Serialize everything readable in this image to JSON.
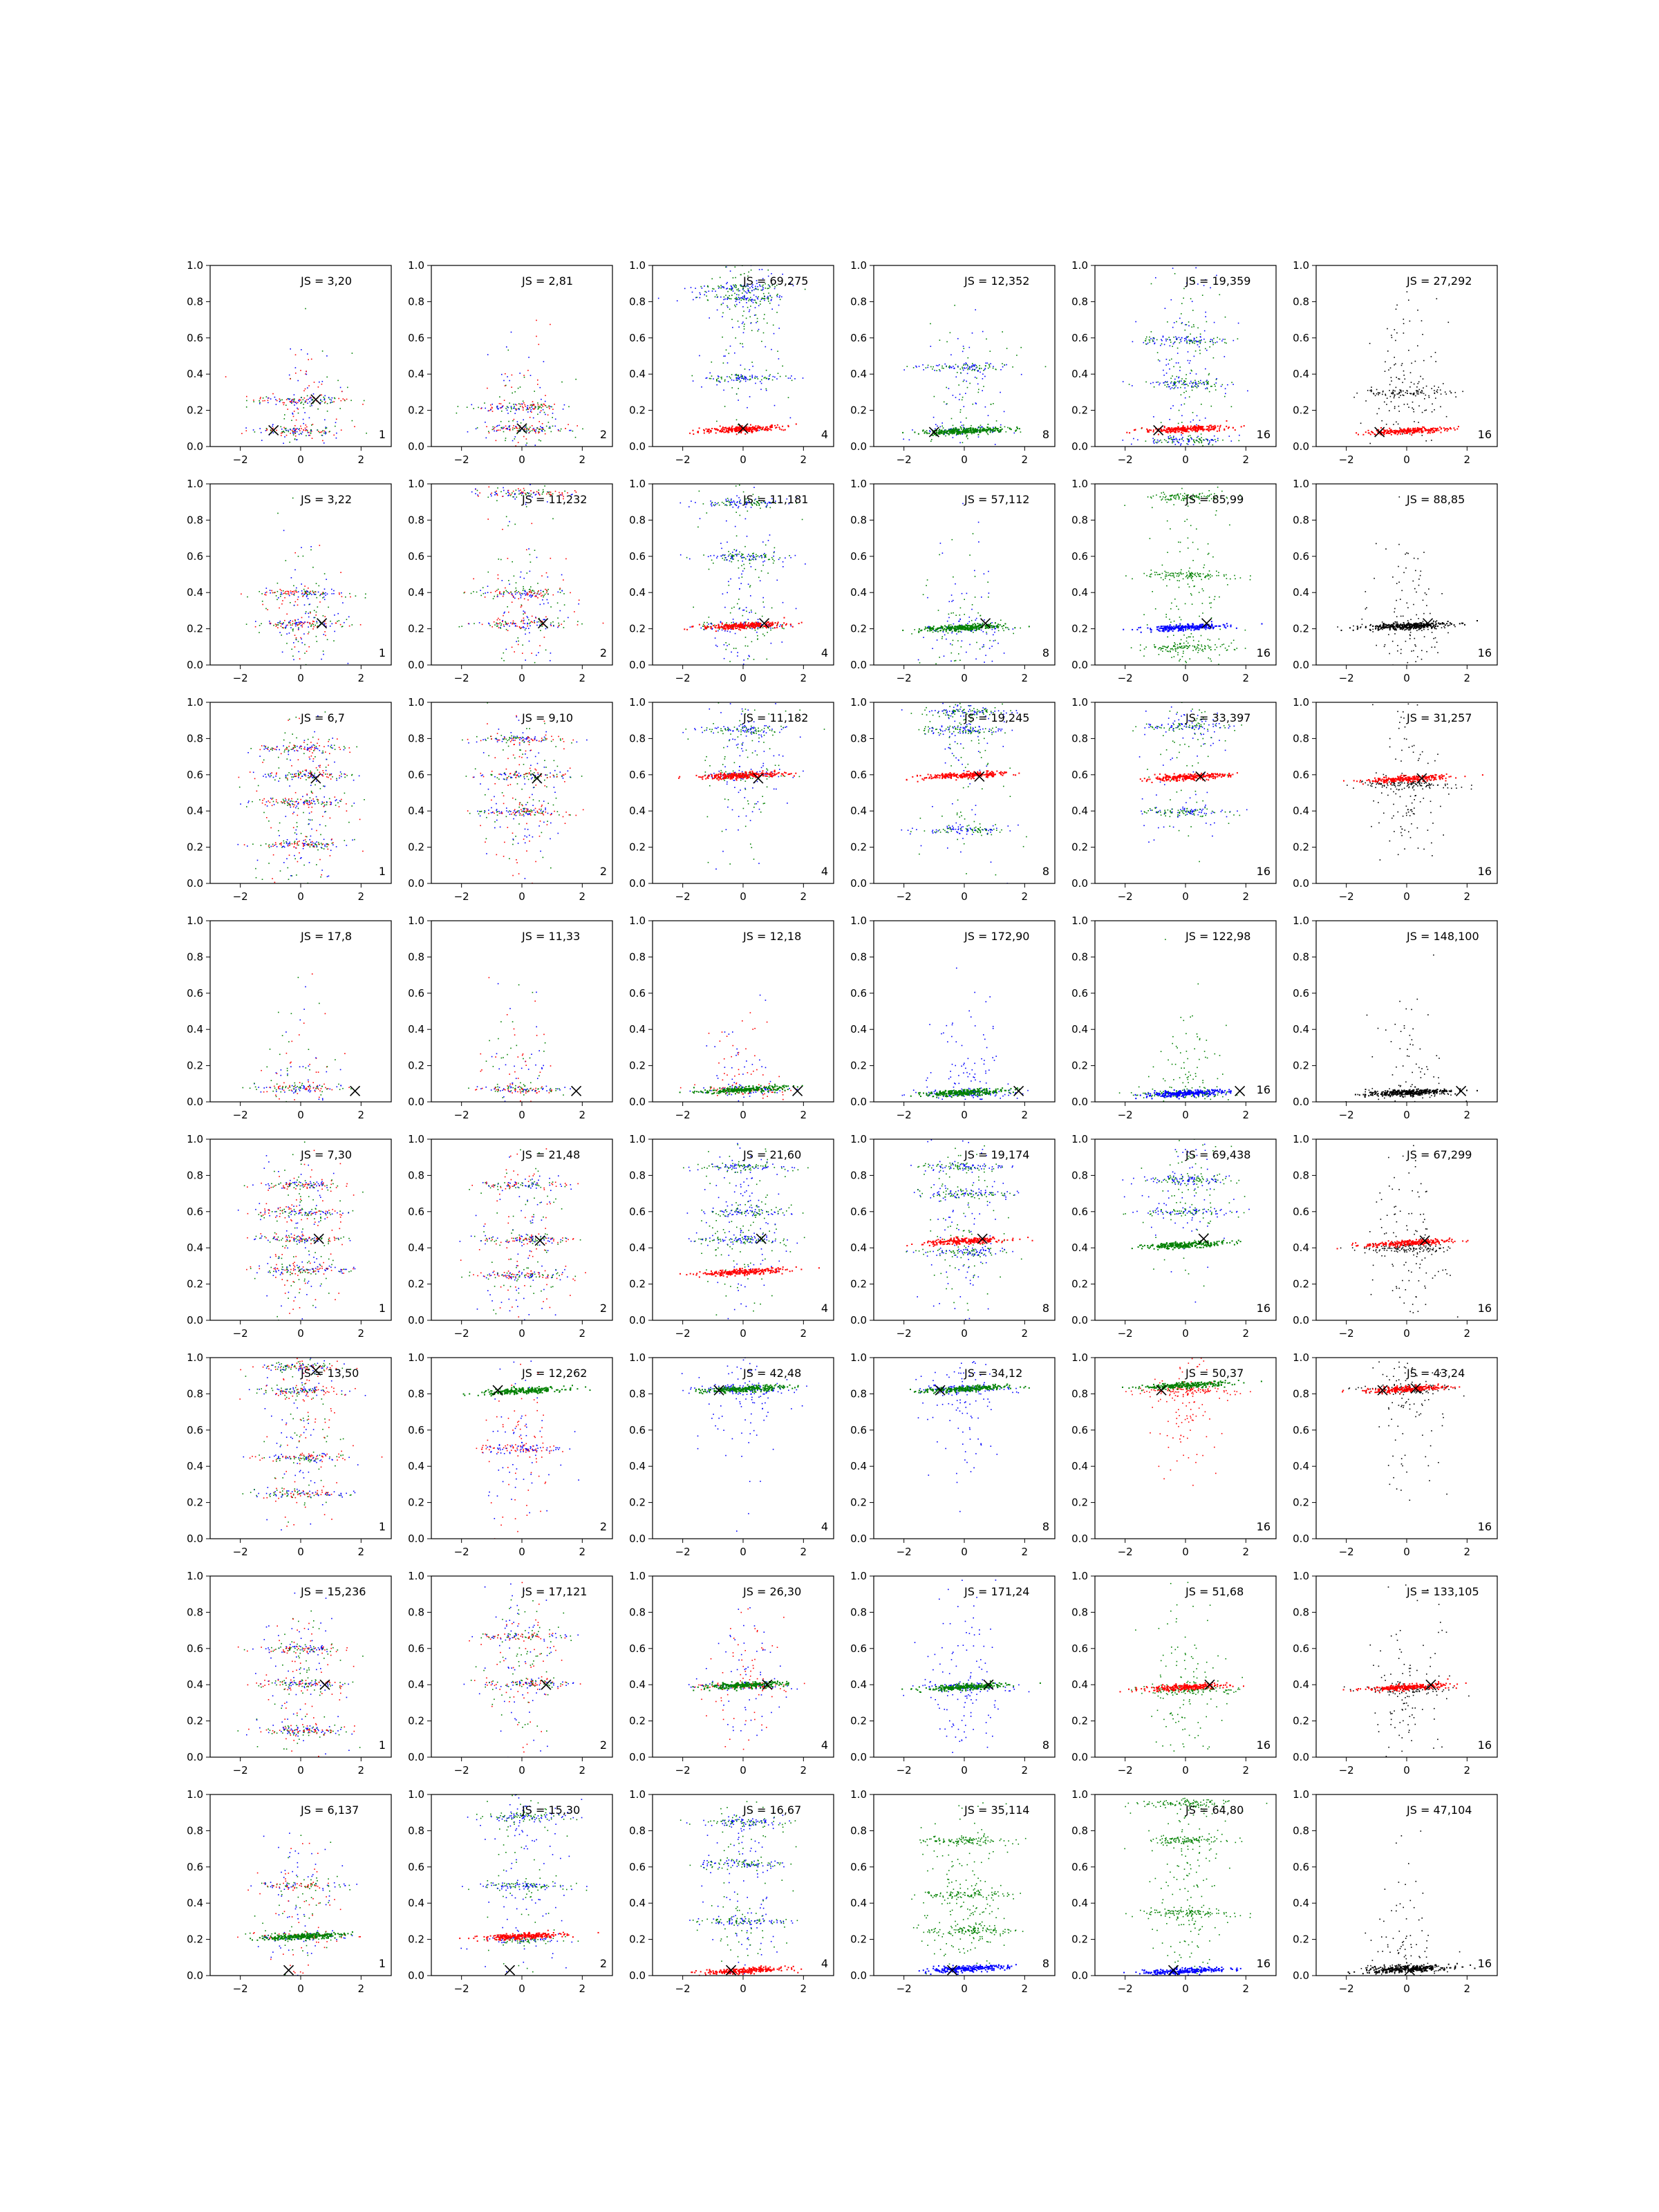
{
  "figure": {
    "rows": 8,
    "cols": 6,
    "x_range": [
      -3,
      3
    ],
    "y_range": [
      0,
      1
    ],
    "x_ticks": [
      -2,
      0,
      2
    ],
    "y_ticks": [
      0,
      0.2,
      0.4,
      0.6,
      0.8,
      1
    ],
    "y_tick_labels": [
      "0.0",
      "0.2",
      "0.4",
      "0.6",
      "0.8",
      "1.0"
    ],
    "colors": {
      "blue": "#0000ff",
      "green": "#008000",
      "red": "#ff0000",
      "black": "#000000"
    },
    "marker": "X"
  },
  "chart_data": {
    "type": "scatter",
    "panels": [
      {
        "row": 1,
        "col": 1,
        "js": "JS = 3,20",
        "label": "1",
        "colors": [
          "blue",
          "green",
          "red"
        ],
        "bands": [
          0.09,
          0.26
        ],
        "fg": null,
        "marks": [
          [
            -0.9,
            0.09
          ],
          [
            0.5,
            0.26
          ]
        ]
      },
      {
        "row": 1,
        "col": 2,
        "js": "JS = 2,81",
        "label": "2",
        "colors": [
          "blue",
          "green",
          "red"
        ],
        "bands": [
          0.1,
          0.22
        ],
        "fg": null,
        "marks": [
          [
            0.0,
            0.1
          ]
        ]
      },
      {
        "row": 1,
        "col": 3,
        "js": "JS = 69,275",
        "label": "4",
        "colors": [
          "blue",
          "green"
        ],
        "bands": [
          0.82,
          0.88,
          0.38
        ],
        "fg": {
          "color": "red",
          "y": 0.1
        },
        "marks": [
          [
            0.0,
            0.1
          ]
        ]
      },
      {
        "row": 1,
        "col": 4,
        "js": "JS = 12,352",
        "label": "8",
        "colors": [
          "blue",
          "green"
        ],
        "bands": [
          0.09,
          0.44
        ],
        "fg": {
          "color": "green",
          "y": 0.09
        },
        "marks": [
          [
            -1.0,
            0.08
          ]
        ]
      },
      {
        "row": 1,
        "col": 5,
        "js": "JS = 19,359",
        "label": "16",
        "colors": [
          "blue",
          "green"
        ],
        "bands": [
          0.59,
          0.35,
          0.04
        ],
        "fg": {
          "color": "red",
          "y": 0.1
        },
        "marks": [
          [
            -0.9,
            0.09
          ]
        ]
      },
      {
        "row": 1,
        "col": 6,
        "js": "JS = 27,292",
        "label": "16",
        "colors": [
          "black"
        ],
        "bands": [
          0.3
        ],
        "fg": {
          "color": "red",
          "y": 0.09
        },
        "marks": [
          [
            -0.9,
            0.08
          ]
        ]
      },
      {
        "row": 2,
        "col": 1,
        "js": "JS = 3,22",
        "label": "1",
        "colors": [
          "blue",
          "green",
          "red"
        ],
        "bands": [
          0.23,
          0.4
        ],
        "fg": null,
        "marks": [
          [
            0.7,
            0.23
          ]
        ]
      },
      {
        "row": 2,
        "col": 2,
        "js": "JS = 11,232",
        "label": "2",
        "colors": [
          "blue",
          "green",
          "red"
        ],
        "bands": [
          0.23,
          0.4,
          0.95
        ],
        "fg": null,
        "marks": [
          [
            0.7,
            0.23
          ]
        ]
      },
      {
        "row": 2,
        "col": 3,
        "js": "JS = 11,181",
        "label": "4",
        "colors": [
          "blue",
          "green"
        ],
        "bands": [
          0.22,
          0.6,
          0.9
        ],
        "fg": {
          "color": "red",
          "y": 0.22
        },
        "marks": [
          [
            0.7,
            0.23
          ]
        ]
      },
      {
        "row": 2,
        "col": 4,
        "js": "JS = 57,112",
        "label": "8",
        "colors": [
          "blue",
          "green"
        ],
        "bands": [
          0.2
        ],
        "fg": {
          "color": "green",
          "y": 0.21
        },
        "marks": [
          [
            0.7,
            0.23
          ]
        ]
      },
      {
        "row": 2,
        "col": 5,
        "js": "JS = 85,99",
        "label": "16",
        "colors": [
          "green"
        ],
        "bands": [
          0.1,
          0.5,
          0.93
        ],
        "fg": {
          "color": "blue",
          "y": 0.21
        },
        "marks": [
          [
            0.7,
            0.23
          ]
        ]
      },
      {
        "row": 2,
        "col": 6,
        "js": "JS = 88,85",
        "label": "16",
        "colors": [
          "black"
        ],
        "bands": [
          0.21
        ],
        "fg": {
          "color": "black",
          "y": 0.22
        },
        "marks": [
          [
            0.7,
            0.23
          ]
        ]
      },
      {
        "row": 3,
        "col": 1,
        "js": "JS = 6,7",
        "label": "1",
        "colors": [
          "blue",
          "green",
          "red"
        ],
        "bands": [
          0.22,
          0.45,
          0.6,
          0.75
        ],
        "fg": null,
        "marks": [
          [
            0.5,
            0.58
          ]
        ]
      },
      {
        "row": 3,
        "col": 2,
        "js": "JS = 9,10",
        "label": "2",
        "colors": [
          "blue",
          "green",
          "red"
        ],
        "bands": [
          0.4,
          0.6,
          0.8
        ],
        "fg": null,
        "marks": [
          [
            0.5,
            0.58
          ]
        ]
      },
      {
        "row": 3,
        "col": 3,
        "js": "JS = 11,182",
        "label": "4",
        "colors": [
          "blue",
          "green"
        ],
        "bands": [
          0.6,
          0.85
        ],
        "fg": {
          "color": "red",
          "y": 0.6
        },
        "marks": [
          [
            0.5,
            0.58
          ]
        ]
      },
      {
        "row": 3,
        "col": 4,
        "js": "JS = 19,245",
        "label": "8",
        "colors": [
          "blue",
          "green"
        ],
        "bands": [
          0.85,
          0.95,
          0.3
        ],
        "fg": {
          "color": "red",
          "y": 0.6
        },
        "marks": [
          [
            0.5,
            0.59
          ]
        ]
      },
      {
        "row": 3,
        "col": 5,
        "js": "JS = 33,397",
        "label": "16",
        "colors": [
          "blue",
          "green"
        ],
        "bands": [
          0.87,
          0.4
        ],
        "fg": {
          "color": "red",
          "y": 0.59
        },
        "marks": [
          [
            0.5,
            0.59
          ]
        ]
      },
      {
        "row": 3,
        "col": 6,
        "js": "JS = 31,257",
        "label": "16",
        "colors": [
          "black"
        ],
        "bands": [
          0.55
        ],
        "fg": {
          "color": "red",
          "y": 0.58
        },
        "marks": [
          [
            0.5,
            0.58
          ]
        ]
      },
      {
        "row": 4,
        "col": 1,
        "js": "JS = 17,8",
        "label": "",
        "colors": [
          "blue",
          "green",
          "red"
        ],
        "bands": [
          0.08
        ],
        "fg": null,
        "marks": [
          [
            1.8,
            0.06
          ]
        ]
      },
      {
        "row": 4,
        "col": 2,
        "js": "JS = 11,33",
        "label": "",
        "colors": [
          "blue",
          "green",
          "red"
        ],
        "bands": [
          0.07
        ],
        "fg": null,
        "marks": [
          [
            1.8,
            0.06
          ]
        ]
      },
      {
        "row": 4,
        "col": 3,
        "js": "JS = 12,18",
        "label": "",
        "colors": [
          "blue",
          "red"
        ],
        "bands": [
          0.07
        ],
        "fg": {
          "color": "green",
          "y": 0.07
        },
        "marks": [
          [
            1.8,
            0.06
          ]
        ]
      },
      {
        "row": 4,
        "col": 4,
        "js": "JS = 172,90",
        "label": "",
        "colors": [
          "blue"
        ],
        "bands": [
          0.05
        ],
        "fg": {
          "color": "green",
          "y": 0.055
        },
        "marks": [
          [
            1.8,
            0.06
          ]
        ]
      },
      {
        "row": 4,
        "col": 5,
        "js": "JS = 122,98",
        "label": "16",
        "colors": [
          "green"
        ],
        "bands": [
          0.05
        ],
        "fg": {
          "color": "blue",
          "y": 0.05
        },
        "marks": [
          [
            1.8,
            0.06
          ]
        ]
      },
      {
        "row": 4,
        "col": 6,
        "js": "JS = 148,100",
        "label": "",
        "colors": [
          "black"
        ],
        "bands": [
          0.05
        ],
        "fg": {
          "color": "black",
          "y": 0.055
        },
        "marks": [
          [
            1.8,
            0.06
          ]
        ]
      },
      {
        "row": 5,
        "col": 1,
        "js": "JS = 7,30",
        "label": "1",
        "colors": [
          "blue",
          "green",
          "red"
        ],
        "bands": [
          0.28,
          0.45,
          0.6,
          0.75
        ],
        "fg": null,
        "marks": [
          [
            0.6,
            0.45
          ]
        ]
      },
      {
        "row": 5,
        "col": 2,
        "js": "JS = 21,48",
        "label": "2",
        "colors": [
          "blue",
          "green",
          "red"
        ],
        "bands": [
          0.25,
          0.45,
          0.75
        ],
        "fg": null,
        "marks": [
          [
            0.6,
            0.44
          ]
        ]
      },
      {
        "row": 5,
        "col": 3,
        "js": "JS = 21,60",
        "label": "4",
        "colors": [
          "blue",
          "green"
        ],
        "bands": [
          0.45,
          0.6,
          0.85
        ],
        "fg": {
          "color": "red",
          "y": 0.27
        },
        "marks": [
          [
            0.6,
            0.45
          ]
        ]
      },
      {
        "row": 5,
        "col": 4,
        "js": "JS = 19,174",
        "label": "8",
        "colors": [
          "blue",
          "green"
        ],
        "bands": [
          0.38,
          0.7,
          0.85
        ],
        "fg": {
          "color": "red",
          "y": 0.44
        },
        "marks": [
          [
            0.6,
            0.45
          ]
        ]
      },
      {
        "row": 5,
        "col": 5,
        "js": "JS = 69,438",
        "label": "16",
        "colors": [
          "blue",
          "green"
        ],
        "bands": [
          0.78,
          0.6
        ],
        "fg": {
          "color": "green",
          "y": 0.42
        },
        "marks": [
          [
            0.6,
            0.45
          ]
        ]
      },
      {
        "row": 5,
        "col": 6,
        "js": "JS = 67,299",
        "label": "16",
        "colors": [
          "black"
        ],
        "bands": [
          0.4
        ],
        "fg": {
          "color": "red",
          "y": 0.43
        },
        "marks": [
          [
            0.6,
            0.44
          ]
        ]
      },
      {
        "row": 6,
        "col": 1,
        "js": "JS = 13,50",
        "label": "1",
        "colors": [
          "blue",
          "green",
          "red"
        ],
        "bands": [
          0.82,
          0.95,
          0.45,
          0.25
        ],
        "fg": null,
        "marks": [
          [
            0.5,
            0.93
          ]
        ]
      },
      {
        "row": 6,
        "col": 2,
        "js": "JS = 12,262",
        "label": "2",
        "colors": [
          "blue",
          "red"
        ],
        "bands": [
          0.5
        ],
        "fg": {
          "color": "green",
          "y": 0.82
        },
        "marks": [
          [
            -0.8,
            0.82
          ]
        ]
      },
      {
        "row": 6,
        "col": 3,
        "js": "JS = 42,48",
        "label": "4",
        "colors": [
          "blue"
        ],
        "bands": [
          0.83
        ],
        "fg": {
          "color": "green",
          "y": 0.83
        },
        "marks": [
          [
            -0.8,
            0.82
          ]
        ]
      },
      {
        "row": 6,
        "col": 4,
        "js": "JS = 34,12",
        "label": "8",
        "colors": [
          "blue"
        ],
        "bands": [
          0.83
        ],
        "fg": {
          "color": "green",
          "y": 0.83
        },
        "marks": [
          [
            -0.8,
            0.82
          ]
        ]
      },
      {
        "row": 6,
        "col": 5,
        "js": "JS = 50,37",
        "label": "16",
        "colors": [
          "red"
        ],
        "bands": [
          0.82
        ],
        "fg": {
          "color": "green",
          "y": 0.85
        },
        "marks": [
          [
            -0.8,
            0.82
          ]
        ]
      },
      {
        "row": 6,
        "col": 6,
        "js": "JS = 43,24",
        "label": "16",
        "colors": [
          "black"
        ],
        "bands": [
          0.83
        ],
        "fg": {
          "color": "red",
          "y": 0.83
        },
        "marks": [
          [
            -0.8,
            0.82
          ],
          [
            0.3,
            0.83
          ]
        ]
      },
      {
        "row": 7,
        "col": 1,
        "js": "JS = 15,236",
        "label": "1",
        "colors": [
          "blue",
          "green",
          "red"
        ],
        "bands": [
          0.41,
          0.6,
          0.15
        ],
        "fg": null,
        "marks": [
          [
            0.8,
            0.4
          ]
        ]
      },
      {
        "row": 7,
        "col": 2,
        "js": "JS = 17,121",
        "label": "2",
        "colors": [
          "blue",
          "green",
          "red"
        ],
        "bands": [
          0.41,
          0.67
        ],
        "fg": null,
        "marks": [
          [
            0.8,
            0.4
          ]
        ]
      },
      {
        "row": 7,
        "col": 3,
        "js": "JS = 26,30",
        "label": "4",
        "colors": [
          "blue",
          "red"
        ],
        "bands": [
          0.4
        ],
        "fg": {
          "color": "green",
          "y": 0.4
        },
        "marks": [
          [
            0.8,
            0.4
          ]
        ]
      },
      {
        "row": 7,
        "col": 4,
        "js": "JS = 171,24",
        "label": "8",
        "colors": [
          "blue"
        ],
        "bands": [
          0.39
        ],
        "fg": {
          "color": "green",
          "y": 0.39
        },
        "marks": [
          [
            0.8,
            0.4
          ]
        ]
      },
      {
        "row": 7,
        "col": 5,
        "js": "JS = 51,68",
        "label": "16",
        "colors": [
          "green"
        ],
        "bands": [
          0.37
        ],
        "fg": {
          "color": "red",
          "y": 0.39
        },
        "marks": [
          [
            0.8,
            0.4
          ]
        ]
      },
      {
        "row": 7,
        "col": 6,
        "js": "JS = 133,105",
        "label": "16",
        "colors": [
          "black"
        ],
        "bands": [
          0.38
        ],
        "fg": {
          "color": "red",
          "y": 0.39
        },
        "marks": [
          [
            0.8,
            0.4
          ]
        ]
      },
      {
        "row": 8,
        "col": 1,
        "js": "JS = 6,137",
        "label": "1",
        "colors": [
          "blue",
          "green",
          "red"
        ],
        "bands": [
          0.22,
          0.5
        ],
        "fg": {
          "color": "green",
          "y": 0.22
        },
        "marks": [
          [
            -0.4,
            0.03
          ]
        ]
      },
      {
        "row": 8,
        "col": 2,
        "js": "JS = 15,30",
        "label": "2",
        "colors": [
          "blue",
          "green"
        ],
        "bands": [
          0.88,
          0.5,
          0.2
        ],
        "fg": {
          "color": "red",
          "y": 0.22
        },
        "marks": [
          [
            -0.4,
            0.03
          ]
        ]
      },
      {
        "row": 8,
        "col": 3,
        "js": "JS = 16,67",
        "label": "4",
        "colors": [
          "blue",
          "green"
        ],
        "bands": [
          0.3,
          0.62,
          0.85
        ],
        "fg": {
          "color": "red",
          "y": 0.03
        },
        "marks": [
          [
            -0.4,
            0.03
          ]
        ]
      },
      {
        "row": 8,
        "col": 4,
        "js": "JS = 35,114",
        "label": "8",
        "colors": [
          "green"
        ],
        "bands": [
          0.25,
          0.45,
          0.75
        ],
        "fg": {
          "color": "blue",
          "y": 0.04
        },
        "marks": [
          [
            -0.4,
            0.03
          ]
        ]
      },
      {
        "row": 8,
        "col": 5,
        "js": "JS = 64,80",
        "label": "16",
        "colors": [
          "green"
        ],
        "bands": [
          0.35,
          0.75,
          0.95
        ],
        "fg": {
          "color": "blue",
          "y": 0.03
        },
        "marks": [
          [
            -0.4,
            0.03
          ]
        ]
      },
      {
        "row": 8,
        "col": 6,
        "js": "JS = 47,104",
        "label": "16",
        "colors": [
          "black"
        ],
        "bands": [
          0.04
        ],
        "fg": {
          "color": "black",
          "y": 0.04
        },
        "marks": [
          [
            0.1,
            0.03
          ]
        ]
      }
    ]
  }
}
